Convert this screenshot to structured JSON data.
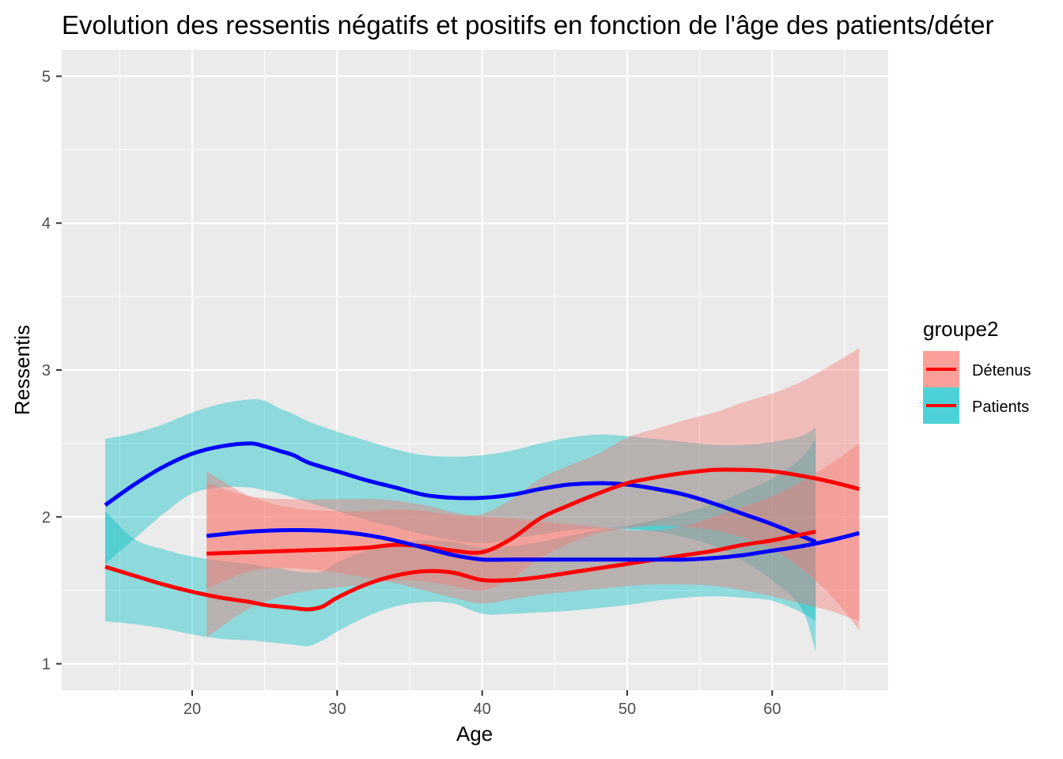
{
  "chart_data": {
    "type": "line",
    "title": "Evolution des ressentis négatifs et positifs en fonction de l'âge des patients/déter",
    "xlabel": "Age",
    "ylabel": "Ressentis",
    "xlim": [
      11,
      68
    ],
    "ylim": [
      0.82,
      5.18
    ],
    "x_ticks": [
      20,
      30,
      40,
      50,
      60
    ],
    "y_ticks": [
      1,
      2,
      3,
      4,
      5
    ],
    "x_tick_labels": [
      "20",
      "30",
      "40",
      "50",
      "60"
    ],
    "y_tick_labels": [
      "1",
      "2",
      "3",
      "4",
      "5"
    ],
    "grid": true,
    "legend": {
      "title": "groupe2",
      "position": "right",
      "entries": [
        {
          "label": "Détenus",
          "fill": "#F8766D"
        },
        {
          "label": "Patients",
          "fill": "#00BFC4"
        }
      ]
    },
    "series": [
      {
        "group": "Patients",
        "line_color": "#0000FF",
        "band_color": "#00BFC4",
        "x": [
          14,
          16,
          18,
          20,
          22,
          24,
          25,
          26,
          27,
          28,
          30,
          32,
          34,
          36,
          38,
          40,
          42,
          44,
          46,
          48,
          50,
          52,
          54,
          56,
          58,
          60,
          62,
          63
        ],
        "y": [
          2.08,
          2.22,
          2.34,
          2.43,
          2.48,
          2.5,
          2.48,
          2.45,
          2.42,
          2.37,
          2.31,
          2.25,
          2.2,
          2.15,
          2.13,
          2.13,
          2.15,
          2.19,
          2.22,
          2.23,
          2.22,
          2.19,
          2.15,
          2.09,
          2.02,
          1.95,
          1.87,
          1.83
        ],
        "lower": [
          1.68,
          1.85,
          2.02,
          2.16,
          2.2,
          2.2,
          2.18,
          2.16,
          2.13,
          2.1,
          2.04,
          1.98,
          1.93,
          1.88,
          1.84,
          1.82,
          1.85,
          1.88,
          1.91,
          1.92,
          1.92,
          1.9,
          1.86,
          1.8,
          1.7,
          1.57,
          1.38,
          1.08
        ],
        "upper": [
          2.53,
          2.57,
          2.63,
          2.71,
          2.77,
          2.8,
          2.79,
          2.74,
          2.7,
          2.65,
          2.58,
          2.52,
          2.46,
          2.42,
          2.41,
          2.42,
          2.45,
          2.5,
          2.54,
          2.56,
          2.55,
          2.53,
          2.51,
          2.49,
          2.49,
          2.51,
          2.55,
          2.61
        ]
      },
      {
        "group": "Patients",
        "line_color": "#FF0000",
        "band_color": "#00BFC4",
        "x": [
          14,
          16,
          18,
          20,
          22,
          24,
          25,
          26,
          27,
          28,
          29,
          30,
          32,
          34,
          36,
          38,
          40,
          42,
          44,
          46,
          48,
          50,
          52,
          54,
          56,
          58,
          60,
          62,
          63
        ],
        "y": [
          1.66,
          1.6,
          1.54,
          1.49,
          1.45,
          1.42,
          1.4,
          1.39,
          1.38,
          1.37,
          1.39,
          1.45,
          1.54,
          1.6,
          1.63,
          1.62,
          1.57,
          1.57,
          1.59,
          1.62,
          1.65,
          1.68,
          1.71,
          1.74,
          1.77,
          1.81,
          1.84,
          1.88,
          1.9
        ],
        "lower": [
          1.29,
          1.27,
          1.24,
          1.2,
          1.17,
          1.16,
          1.15,
          1.14,
          1.13,
          1.12,
          1.16,
          1.22,
          1.32,
          1.39,
          1.42,
          1.41,
          1.34,
          1.34,
          1.35,
          1.36,
          1.38,
          1.4,
          1.43,
          1.45,
          1.46,
          1.45,
          1.43,
          1.35,
          1.29
        ],
        "upper": [
          2.04,
          1.85,
          1.78,
          1.73,
          1.7,
          1.68,
          1.66,
          1.65,
          1.63,
          1.62,
          1.63,
          1.69,
          1.77,
          1.82,
          1.84,
          1.83,
          1.79,
          1.8,
          1.83,
          1.87,
          1.91,
          1.94,
          1.98,
          2.03,
          2.09,
          2.17,
          2.26,
          2.4,
          2.53
        ]
      },
      {
        "group": "Détenus",
        "line_color": "#FF0000",
        "band_color": "#F8766D",
        "x": [
          21,
          24,
          27,
          30,
          32,
          34,
          36,
          38,
          40,
          42,
          44,
          46,
          48,
          50,
          52,
          54,
          56,
          58,
          60,
          62,
          64,
          66
        ],
        "y": [
          1.75,
          1.76,
          1.77,
          1.78,
          1.79,
          1.81,
          1.8,
          1.77,
          1.76,
          1.85,
          1.99,
          2.08,
          2.16,
          2.23,
          2.27,
          2.3,
          2.32,
          2.32,
          2.31,
          2.28,
          2.24,
          2.19
        ],
        "lower": [
          1.18,
          1.38,
          1.48,
          1.52,
          1.54,
          1.57,
          1.56,
          1.53,
          1.5,
          1.58,
          1.72,
          1.82,
          1.89,
          1.92,
          1.94,
          1.93,
          1.91,
          1.86,
          1.78,
          1.65,
          1.47,
          1.23
        ],
        "upper": [
          2.31,
          2.14,
          2.06,
          2.04,
          2.04,
          2.05,
          2.04,
          2.01,
          2.02,
          2.12,
          2.26,
          2.35,
          2.43,
          2.54,
          2.6,
          2.66,
          2.71,
          2.78,
          2.84,
          2.92,
          3.03,
          3.15
        ]
      },
      {
        "group": "Détenus",
        "line_color": "#0000FF",
        "band_color": "#F8766D",
        "x": [
          21,
          24,
          27,
          30,
          33,
          36,
          38,
          40,
          42,
          44,
          46,
          48,
          50,
          52,
          54,
          56,
          58,
          60,
          62,
          64,
          66
        ],
        "y": [
          1.87,
          1.9,
          1.91,
          1.9,
          1.86,
          1.79,
          1.74,
          1.71,
          1.71,
          1.71,
          1.71,
          1.71,
          1.71,
          1.71,
          1.71,
          1.72,
          1.74,
          1.77,
          1.8,
          1.84,
          1.89
        ],
        "lower": [
          1.51,
          1.63,
          1.65,
          1.62,
          1.57,
          1.5,
          1.45,
          1.41,
          1.44,
          1.47,
          1.49,
          1.51,
          1.53,
          1.54,
          1.54,
          1.53,
          1.5,
          1.46,
          1.41,
          1.36,
          1.29
        ],
        "upper": [
          2.23,
          2.14,
          2.12,
          2.12,
          2.12,
          2.08,
          2.03,
          2.0,
          1.99,
          1.97,
          1.95,
          1.93,
          1.91,
          1.91,
          1.94,
          2.0,
          2.07,
          2.14,
          2.24,
          2.36,
          2.5
        ]
      }
    ]
  }
}
